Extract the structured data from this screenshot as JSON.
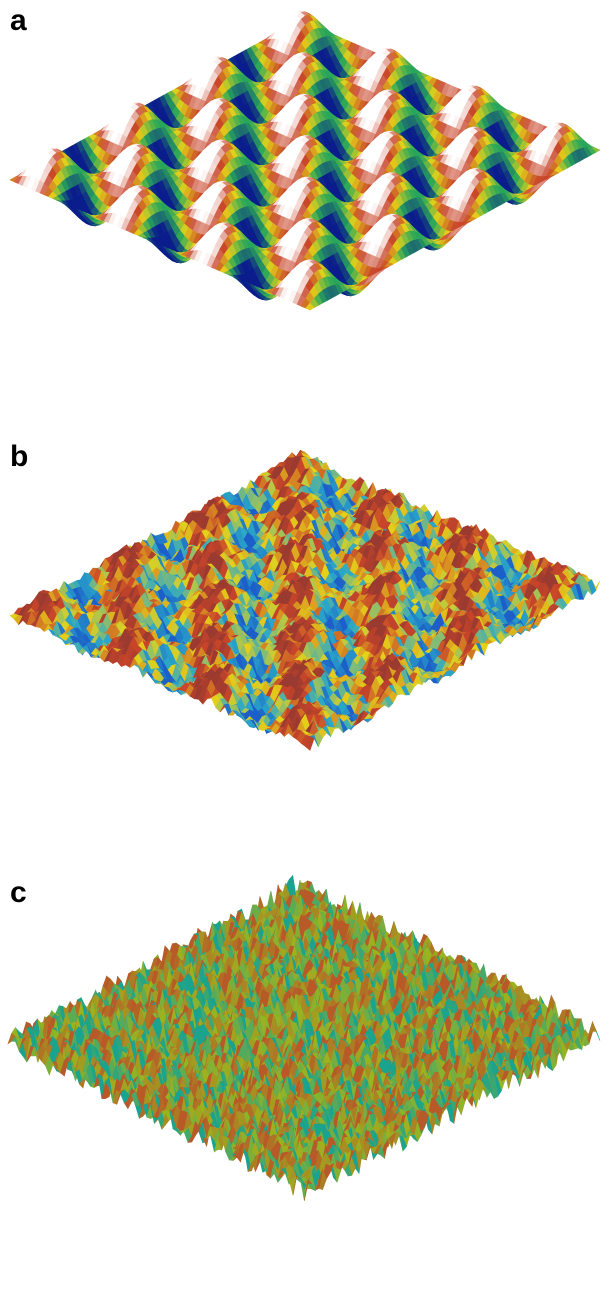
{
  "panels": [
    {
      "label": "a",
      "surface": "smooth"
    },
    {
      "label": "b",
      "surface": "rough"
    },
    {
      "label": "c",
      "surface": "noise"
    }
  ],
  "colors": {
    "peak": "#ffffff",
    "high": "#c8452a",
    "mid": "#e5d21a",
    "low": "#2aa85a",
    "valley": "#0b1c8c",
    "noise_high": "#b85a28",
    "noise_mid": "#9cb41e",
    "noise_low": "#1aa38f"
  }
}
